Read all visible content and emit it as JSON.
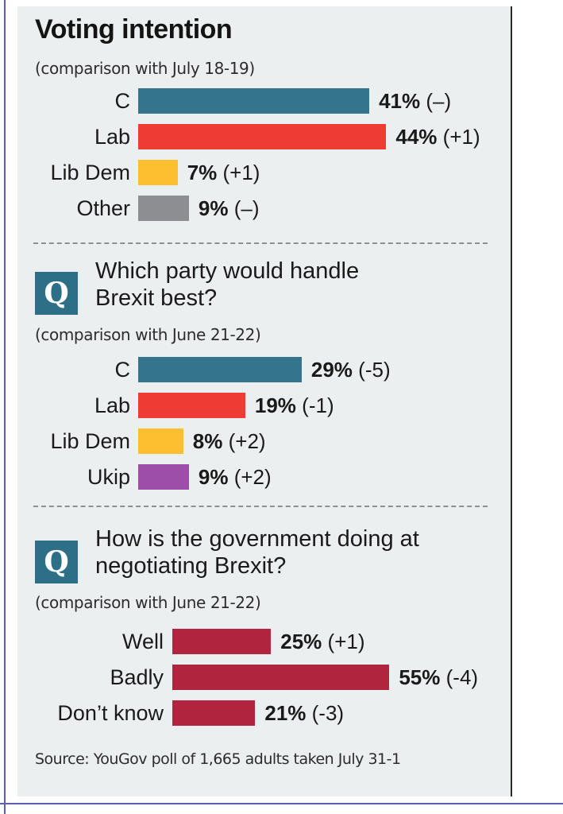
{
  "chart_data": [
    {
      "type": "bar",
      "title": "Voting intention",
      "subtitle": "(comparison with July 18-19)",
      "categories": [
        "C",
        "Lab",
        "Lib Dem",
        "Other"
      ],
      "values": [
        41,
        44,
        7,
        9
      ],
      "data_labels": [
        {
          "value": "41%",
          "change": "(–)"
        },
        {
          "value": "44%",
          "change": "(+1)"
        },
        {
          "value": "7%",
          "change": "(+1)"
        },
        {
          "value": "9%",
          "change": "(–)"
        }
      ],
      "colors": [
        "#34758d",
        "#ee3b34",
        "#fdbe2f",
        "#8c8e91"
      ]
    },
    {
      "type": "bar",
      "question_icon": "Q",
      "title": "Which party would handle Brexit best?",
      "title_lines": [
        "Which party would handle",
        "Brexit best?"
      ],
      "subtitle": "(comparison with June 21-22)",
      "categories": [
        "C",
        "Lab",
        "Lib Dem",
        "Ukip"
      ],
      "values": [
        29,
        19,
        8,
        9
      ],
      "data_labels": [
        {
          "value": "29%",
          "change": "(-5)"
        },
        {
          "value": "19%",
          "change": "(-1)"
        },
        {
          "value": "8%",
          "change": "(+2)"
        },
        {
          "value": "9%",
          "change": "(+2)"
        }
      ],
      "colors": [
        "#34758d",
        "#ee3b34",
        "#fdbe2f",
        "#9b4fa8"
      ]
    },
    {
      "type": "bar",
      "question_icon": "Q",
      "title": "How is the government doing at negotiating Brexit?",
      "title_lines": [
        "How is the government doing at",
        "negotiating Brexit?"
      ],
      "subtitle": "(comparison with June 21-22)",
      "categories": [
        "Well",
        "Badly",
        "Don’t know"
      ],
      "values": [
        25,
        55,
        21
      ],
      "data_labels": [
        {
          "value": "25%",
          "change": "(+1)"
        },
        {
          "value": "55%",
          "change": "(-4)"
        },
        {
          "value": "21%",
          "change": "(-3)"
        }
      ],
      "colors": [
        "#b0243e",
        "#b0243e",
        "#b0243e"
      ]
    }
  ],
  "source": "Source: YouGov poll of 1,665 adults taken July 31-1"
}
